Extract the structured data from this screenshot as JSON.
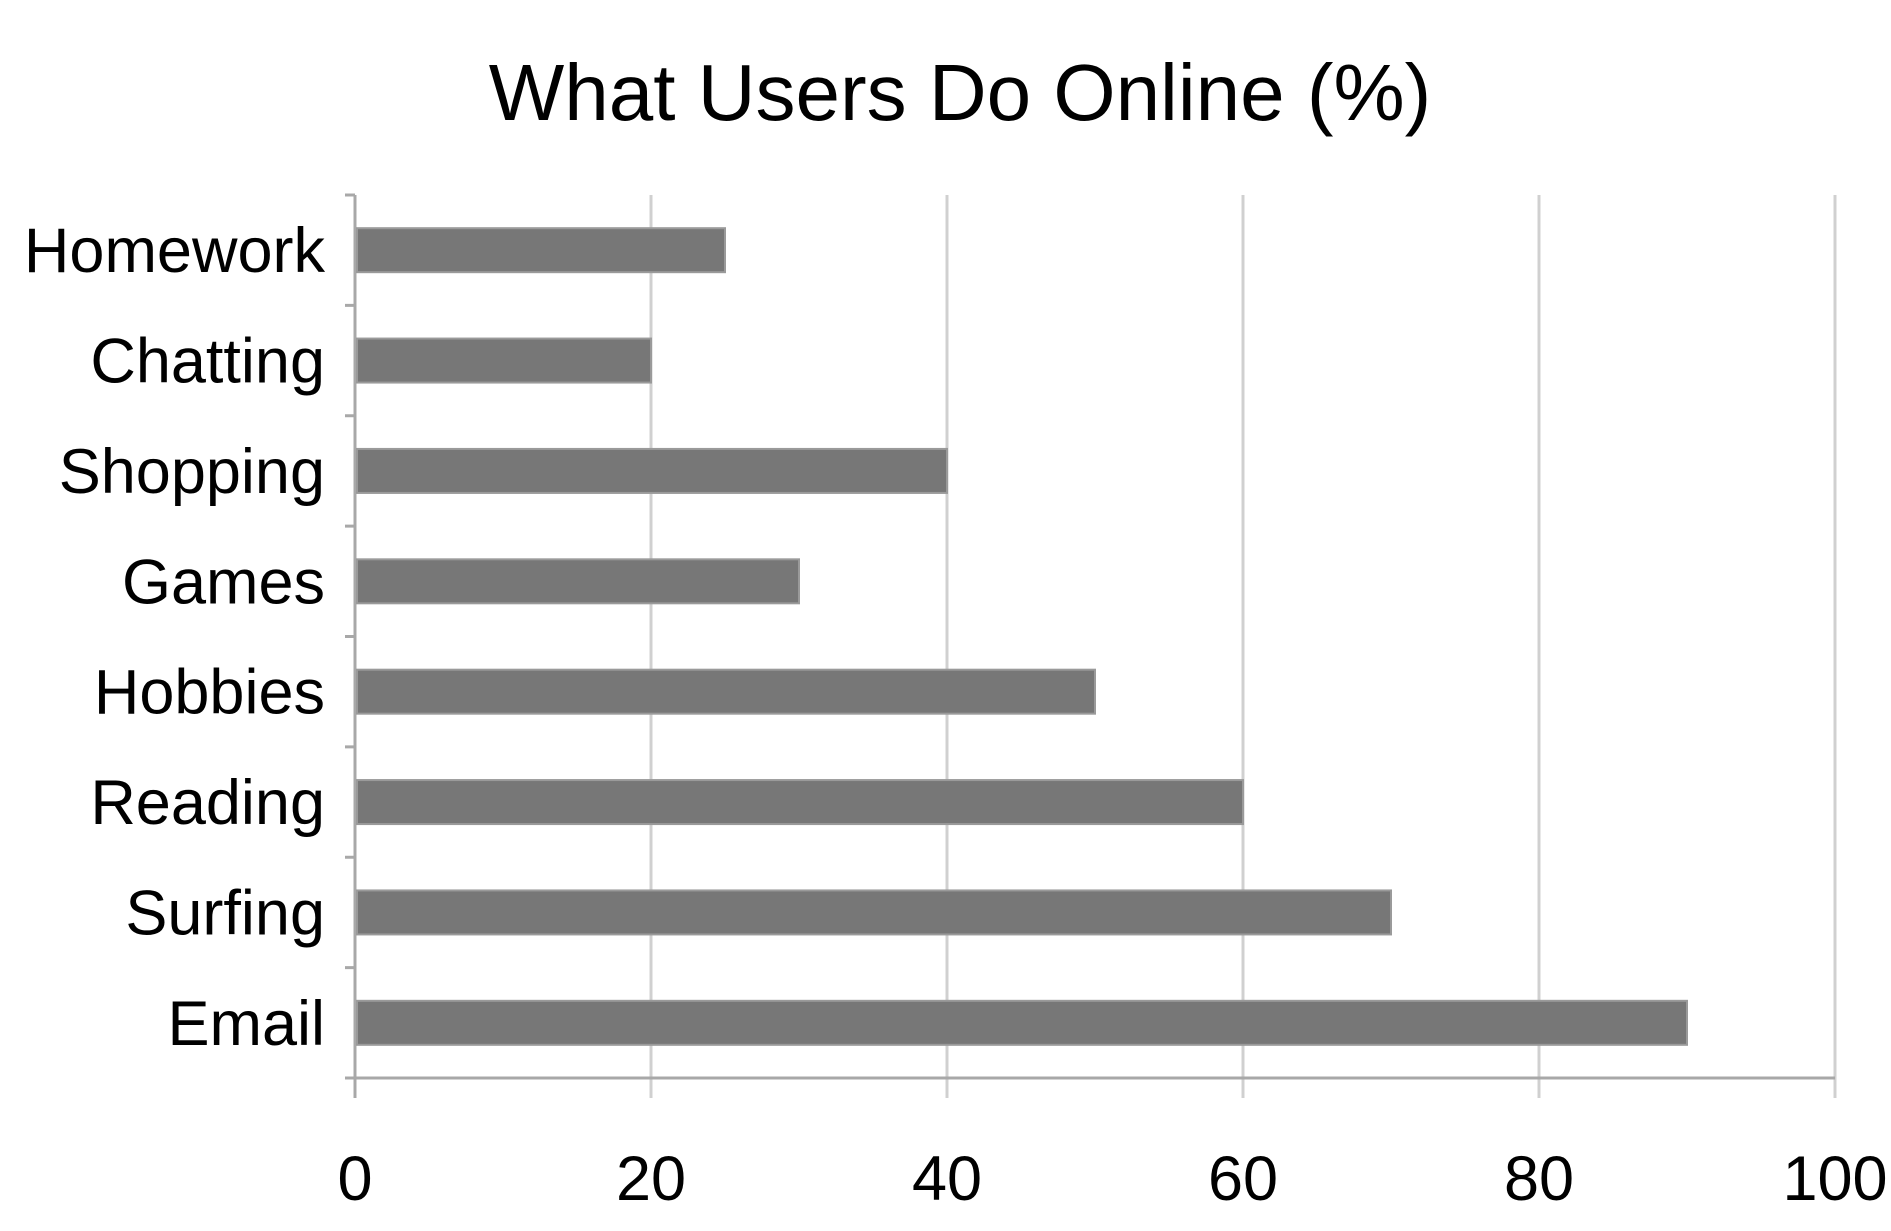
{
  "chart_data": {
    "type": "bar",
    "orientation": "horizontal",
    "title": "What Users Do Online (%)",
    "xlabel": "",
    "ylabel": "",
    "categories": [
      "Homework",
      "Chatting",
      "Shopping",
      "Games",
      "Hobbies",
      "Reading",
      "Surfing",
      "Email"
    ],
    "values": [
      25,
      20,
      40,
      30,
      50,
      60,
      70,
      90
    ],
    "xlim": [
      0,
      100
    ],
    "x_ticks": [
      0,
      20,
      40,
      60,
      80,
      100
    ],
    "x_tick_labels": [
      "0",
      "20",
      "40",
      "60",
      "80",
      "100"
    ],
    "grid": "vertical",
    "legend": "none",
    "colors": {
      "bar": "#777777",
      "bar_edge": "#9a9a9a",
      "grid": "#d0d0d0",
      "axis": "#a8a8a8",
      "text": "#000000"
    }
  }
}
